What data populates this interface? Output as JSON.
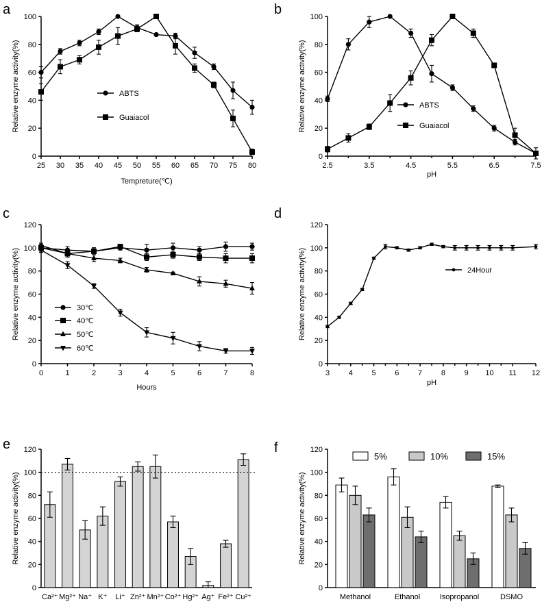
{
  "chart_data": [
    {
      "panel": "a",
      "type": "line",
      "xlabel": "Tempreture(℃)",
      "ylabel": "Relative enzyme activity(%)",
      "xlim": [
        25,
        80
      ],
      "ylim": [
        0,
        100
      ],
      "xticks": [
        "25",
        "30",
        "35",
        "40",
        "45",
        "50",
        "55",
        "60",
        "65",
        "70",
        "75",
        "80"
      ],
      "yticks": [
        "0",
        "20",
        "40",
        "60",
        "80",
        "100"
      ],
      "x": [
        25,
        30,
        35,
        40,
        45,
        50,
        55,
        60,
        65,
        70,
        75,
        80
      ],
      "series": [
        {
          "name": "ABTS",
          "marker": "circle",
          "values": [
            60,
            75,
            81,
            89,
            100,
            92,
            87,
            86,
            74,
            64,
            47,
            35
          ],
          "errors": [
            4,
            2,
            2,
            2,
            0,
            2,
            0,
            2,
            4,
            2,
            6,
            5
          ]
        },
        {
          "name": "Guaiacol",
          "marker": "square",
          "values": [
            46,
            64,
            69,
            78,
            86,
            91,
            100,
            79,
            63,
            51,
            27,
            3
          ],
          "errors": [
            6,
            5,
            3,
            5,
            6,
            2,
            0,
            6,
            3,
            2,
            6,
            2
          ]
        }
      ],
      "legend_position": "center-left"
    },
    {
      "panel": "b",
      "type": "line",
      "xlabel": "pH",
      "ylabel": "Relative enzyme activity(%)",
      "xlim": [
        2.5,
        7.5
      ],
      "ylim": [
        0,
        100
      ],
      "xticks": [
        "2.5",
        "3.5",
        "4.5",
        "5.5",
        "6.5",
        "7.5"
      ],
      "yticks": [
        "0",
        "20",
        "40",
        "60",
        "80",
        "100"
      ],
      "x": [
        2.5,
        3,
        3.5,
        4,
        4.5,
        5,
        5.5,
        6,
        6.5,
        7,
        7.5
      ],
      "series": [
        {
          "name": "ABTS",
          "marker": "circle",
          "values": [
            41,
            80,
            96,
            100,
            88,
            59,
            49,
            34,
            20,
            10,
            2
          ],
          "errors": [
            2,
            4,
            4,
            0,
            3,
            6,
            2,
            2,
            2,
            2,
            1
          ]
        },
        {
          "name": "Guaiacol",
          "marker": "square",
          "values": [
            5,
            13,
            21,
            38,
            56,
            83,
            100,
            88,
            65,
            15,
            2
          ],
          "errors": [
            2,
            3,
            2,
            6,
            5,
            4,
            0,
            3,
            0,
            5,
            4
          ]
        }
      ],
      "legend_position": "center-right"
    },
    {
      "panel": "c",
      "type": "line",
      "xlabel": "Hours",
      "ylabel": "Relative enzyme activity(%)",
      "xlim": [
        0,
        8
      ],
      "ylim": [
        0,
        120
      ],
      "xticks": [
        "0",
        "1",
        "2",
        "3",
        "4",
        "5",
        "6",
        "7",
        "8"
      ],
      "yticks": [
        "0",
        "20",
        "40",
        "60",
        "80",
        "100",
        "120"
      ],
      "x": [
        0,
        1,
        2,
        3,
        4,
        5,
        6,
        7,
        8
      ],
      "series": [
        {
          "name": "30℃",
          "marker": "circle",
          "values": [
            100,
            98,
            97,
            100,
            98,
            100,
            98,
            101,
            101
          ],
          "errors": [
            3,
            3,
            3,
            2,
            5,
            4,
            3,
            4,
            3
          ]
        },
        {
          "name": "40℃",
          "marker": "square",
          "values": [
            100,
            95,
            97,
            101,
            92,
            94,
            92,
            91,
            91
          ],
          "errors": [
            3,
            3,
            3,
            2,
            3,
            3,
            3,
            4,
            4
          ]
        },
        {
          "name": "50℃",
          "marker": "triangle-up",
          "values": [
            102,
            95,
            91,
            89,
            81,
            78,
            71,
            69,
            65
          ],
          "errors": [
            2,
            3,
            3,
            2,
            2,
            1,
            4,
            3,
            5
          ]
        },
        {
          "name": "60℃",
          "marker": "triangle-down",
          "values": [
            98,
            85,
            67,
            44,
            27,
            22,
            15,
            11,
            11
          ],
          "errors": [
            2,
            3,
            2,
            3,
            4,
            5,
            4,
            2,
            3
          ]
        }
      ],
      "legend_position": "bottom-left"
    },
    {
      "panel": "d",
      "type": "line",
      "xlabel": "pH",
      "ylabel": "Relative enzyme activity(%)",
      "xlim": [
        3,
        12
      ],
      "ylim": [
        0,
        120
      ],
      "xticks": [
        "3",
        "4",
        "5",
        "6",
        "7",
        "8",
        "9",
        "10",
        "11",
        "12"
      ],
      "yticks": [
        "0",
        "20",
        "40",
        "60",
        "80",
        "100",
        "120"
      ],
      "x": [
        3,
        3.5,
        4,
        4.5,
        5,
        5.5,
        6,
        6.5,
        7,
        7.5,
        8,
        8.5,
        9,
        9.5,
        10,
        10.5,
        11,
        12
      ],
      "series": [
        {
          "name": "24Hour",
          "marker": "small-circle",
          "values": [
            32,
            40,
            52,
            64,
            91,
            101,
            100,
            98,
            100,
            103,
            101,
            100,
            100,
            100,
            100,
            100,
            100,
            101
          ],
          "errors": [
            1,
            1,
            1,
            1,
            1,
            2,
            1,
            1,
            1,
            1,
            1,
            2,
            2,
            2,
            2,
            2,
            2,
            2
          ]
        }
      ],
      "legend_position": "top-right"
    },
    {
      "panel": "e",
      "type": "bar",
      "ylabel": "Relative enzyme activity(%)",
      "ylim": [
        0,
        120
      ],
      "yticks": [
        "0",
        "20",
        "40",
        "60",
        "80",
        "100",
        "120"
      ],
      "categories": [
        "Ca²⁺",
        "Mg²⁺",
        "Na⁺",
        "K⁺",
        "Li⁺",
        "Zn²⁺",
        "Mn²⁺",
        "Co²⁺",
        "Hg²⁺",
        "Ag⁺",
        "Fe²⁺",
        "Cu²⁺"
      ],
      "values": [
        72,
        107,
        50,
        62,
        92,
        105,
        105,
        57,
        27,
        2,
        38,
        111
      ],
      "errors": [
        11,
        5,
        8,
        8,
        4,
        4,
        10,
        5,
        7,
        3,
        3,
        5
      ],
      "reference_line": 100,
      "bar_color": "#d4d4d4"
    },
    {
      "panel": "f",
      "type": "bar",
      "ylabel": "Relative enzyme activity(%)",
      "ylim": [
        0,
        120
      ],
      "yticks": [
        "0",
        "20",
        "40",
        "60",
        "80",
        "100",
        "120"
      ],
      "categories": [
        "Methanol",
        "Ethanol",
        "Isopropanol",
        "DSMO"
      ],
      "series": [
        {
          "name": "5%",
          "color": "#ffffff",
          "values": [
            89,
            96,
            74,
            88
          ],
          "errors": [
            6,
            7,
            5,
            1
          ]
        },
        {
          "name": "10%",
          "color": "#c9c9c9",
          "values": [
            80,
            61,
            45,
            63
          ],
          "errors": [
            8,
            9,
            4,
            6
          ]
        },
        {
          "name": "15%",
          "color": "#6e6e6e",
          "values": [
            63,
            44,
            25,
            34
          ],
          "errors": [
            6,
            5,
            5,
            5
          ]
        }
      ],
      "legend_position": "top"
    }
  ]
}
